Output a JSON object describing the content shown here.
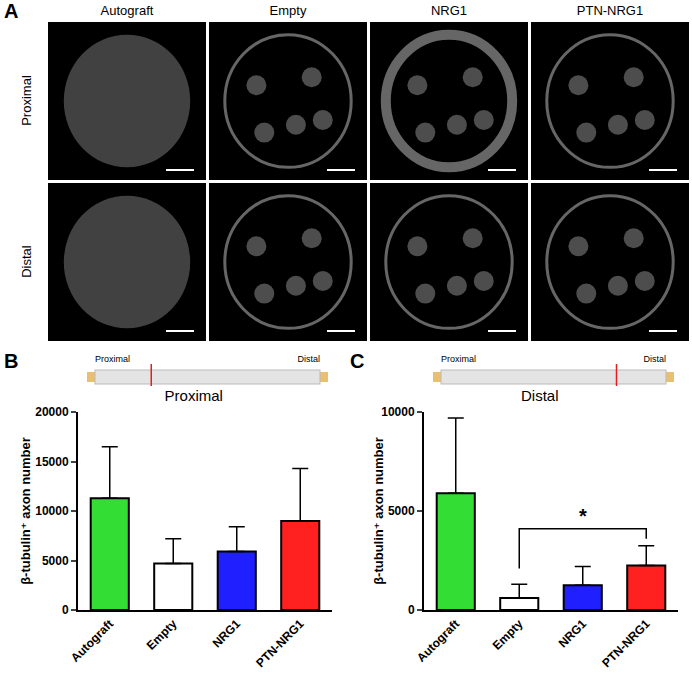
{
  "panel_A": {
    "label": "A",
    "columns": [
      "Autograft",
      "Empty",
      "NRG1",
      "PTN-NRG1"
    ],
    "rows": [
      "Proximal",
      "Distal"
    ]
  },
  "chart_data": [
    {
      "type": "bar",
      "panel_label": "B",
      "title": "Proximal",
      "diagram_labels": [
        "Proximal",
        "Distal"
      ],
      "y_label": "β-tubulin⁺ axon number",
      "categories": [
        "Autograft",
        "Empty",
        "NRG1",
        "PTN-NRG1"
      ],
      "values": [
        11300,
        4700,
        5900,
        9000
      ],
      "errors": [
        5200,
        2500,
        2500,
        5300
      ],
      "colors": [
        "#33dd33",
        "#ffffff",
        "#1f1fff",
        "#ff2020"
      ],
      "ylim": [
        0,
        20000
      ],
      "yticks": [
        0,
        5000,
        10000,
        15000,
        20000
      ],
      "grid": false
    },
    {
      "type": "bar",
      "panel_label": "C",
      "title": "Distal",
      "diagram_labels": [
        "Proximal",
        "Distal"
      ],
      "y_label": "β-tubulin⁺ axon number",
      "categories": [
        "Autograft",
        "Empty",
        "NRG1",
        "PTN-NRG1"
      ],
      "values": [
        5900,
        600,
        1250,
        2250
      ],
      "errors": [
        3800,
        700,
        950,
        1000
      ],
      "colors": [
        "#33dd33",
        "#ffffff",
        "#1f1fff",
        "#ff2020"
      ],
      "ylim": [
        0,
        10000
      ],
      "yticks": [
        0,
        5000,
        10000
      ],
      "grid": false,
      "annotations": [
        {
          "text": "*",
          "x_from": "Empty",
          "x_to": "PTN-NRG1",
          "y": 4100
        }
      ]
    }
  ]
}
